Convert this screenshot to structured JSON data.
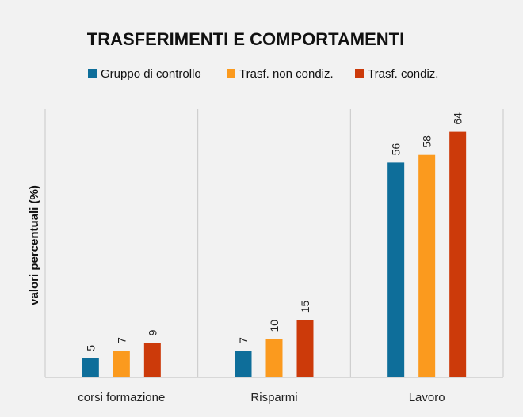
{
  "chart_data": {
    "type": "bar",
    "title": "TRASFERIMENTI E COMPORTAMENTI",
    "xlabel": "",
    "ylabel": "valori percentuali (%)",
    "categories": [
      "corsi formazione",
      "Risparmi",
      "Lavoro"
    ],
    "series": [
      {
        "name": "Gruppo di controllo",
        "values": [
          5,
          7,
          56
        ],
        "color": "#0e6e9a"
      },
      {
        "name": "Trasf. non condiz.",
        "values": [
          7,
          10,
          58
        ],
        "color": "#fb9a1e"
      },
      {
        "name": "Trasf. condiz.",
        "values": [
          9,
          15,
          64
        ],
        "color": "#cc3a0a"
      }
    ],
    "ylim": [
      0,
      70
    ],
    "grid": false,
    "legend": "top",
    "data_labels": true
  }
}
